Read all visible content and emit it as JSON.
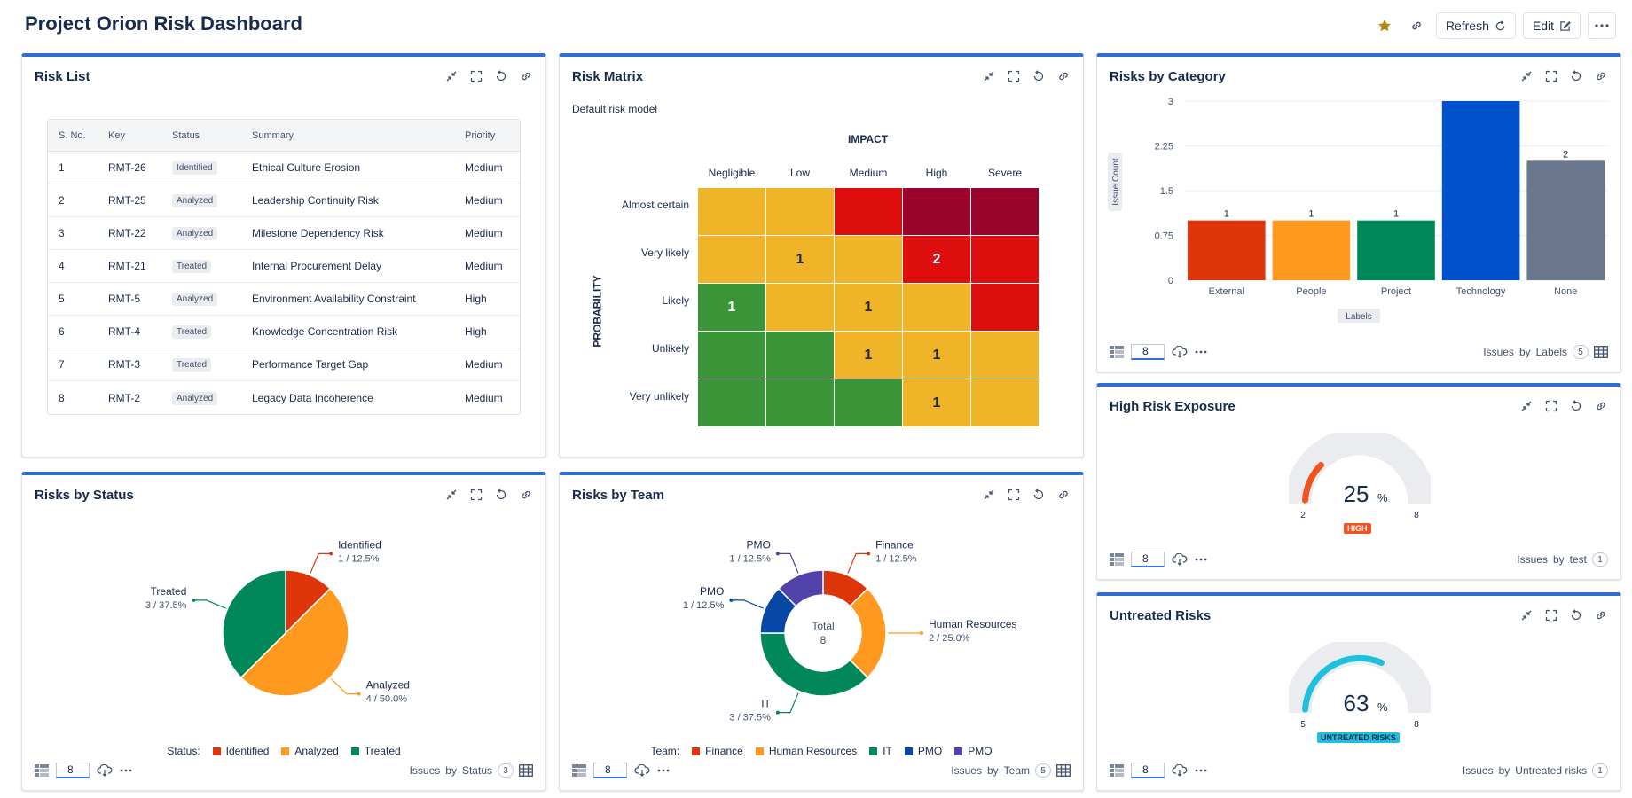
{
  "page": {
    "title": "Project Orion Risk Dashboard",
    "refresh_label": "Refresh",
    "edit_label": "Edit"
  },
  "colors": {
    "accent": "#2f6fd6",
    "identified": "#de350b",
    "analyzed": "#ff991f",
    "treated": "#00875a",
    "technology": "#0052cc",
    "none": "#6b778c",
    "it": "#00875a",
    "pmo1": "#0747a6",
    "pmo2": "#5243aa",
    "gauge_high": "#f4511e",
    "gauge_untreated": "#1fc0dd"
  },
  "risk_list": {
    "title": "Risk List",
    "columns": [
      "S. No.",
      "Key",
      "Status",
      "Summary",
      "Priority"
    ],
    "rows": [
      {
        "no": "1",
        "key": "RMT-26",
        "status": "Identified",
        "summary": "Ethical Culture Erosion",
        "priority": "Medium"
      },
      {
        "no": "2",
        "key": "RMT-25",
        "status": "Analyzed",
        "summary": "Leadership Continuity Risk",
        "priority": "Medium"
      },
      {
        "no": "3",
        "key": "RMT-22",
        "status": "Analyzed",
        "summary": "Milestone Dependency Risk",
        "priority": "Medium"
      },
      {
        "no": "4",
        "key": "RMT-21",
        "status": "Treated",
        "summary": "Internal Procurement Delay",
        "priority": "Medium"
      },
      {
        "no": "5",
        "key": "RMT-5",
        "status": "Analyzed",
        "summary": "Environment Availability Constraint",
        "priority": "High"
      },
      {
        "no": "6",
        "key": "RMT-4",
        "status": "Treated",
        "summary": "Knowledge Concentration Risk",
        "priority": "High"
      },
      {
        "no": "7",
        "key": "RMT-3",
        "status": "Treated",
        "summary": "Performance Target Gap",
        "priority": "Medium"
      },
      {
        "no": "8",
        "key": "RMT-2",
        "status": "Analyzed",
        "summary": "Legacy Data Incoherence",
        "priority": "Medium"
      }
    ]
  },
  "risk_matrix": {
    "title": "Risk Matrix",
    "subtitle": "Default risk model",
    "impact_label": "IMPACT",
    "probability_label": "PROBABILITY",
    "impact_levels": [
      "Negligible",
      "Low",
      "Medium",
      "High",
      "Severe"
    ],
    "probability_levels": [
      "Almost certain",
      "Very likely",
      "Likely",
      "Unlikely",
      "Very unlikely"
    ],
    "colors": [
      [
        "y",
        "y",
        "r",
        "dr",
        "dr"
      ],
      [
        "y",
        "y",
        "y",
        "r",
        "r"
      ],
      [
        "g",
        "y",
        "y",
        "y",
        "r"
      ],
      [
        "g",
        "g",
        "y",
        "y",
        "y"
      ],
      [
        "g",
        "g",
        "g",
        "y",
        "y"
      ]
    ],
    "counts": [
      [
        "",
        "",
        "",
        "",
        ""
      ],
      [
        "",
        "1",
        "",
        "2",
        ""
      ],
      [
        "1",
        "",
        "1",
        "",
        ""
      ],
      [
        "",
        "",
        "1",
        "1",
        ""
      ],
      [
        "",
        "",
        "",
        "1",
        ""
      ]
    ]
  },
  "risks_by_category": {
    "title": "Risks by Category",
    "footer_value": "8",
    "footer_issues": "Issues",
    "footer_by": "by",
    "footer_field": "Labels",
    "footer_count": "5"
  },
  "high_risk_exposure": {
    "title": "High Risk Exposure",
    "percent": "25",
    "percent_sign": "%",
    "min": "2",
    "max": "8",
    "badge": "HIGH",
    "fraction": 0.25,
    "footer_value": "8",
    "footer_issues": "Issues",
    "footer_by": "by",
    "footer_field": "test",
    "footer_count": "1"
  },
  "untreated_risks": {
    "title": "Untreated Risks",
    "percent": "63",
    "percent_sign": "%",
    "min": "5",
    "max": "8",
    "badge": "UNTREATED RISKS",
    "fraction": 0.63,
    "footer_value": "8",
    "footer_issues": "Issues",
    "footer_by": "by",
    "footer_field": "Untreated risks",
    "footer_count": "1"
  },
  "risks_by_status": {
    "title": "Risks by Status",
    "legend_title": "Status:",
    "footer_value": "8",
    "footer_issues": "Issues",
    "footer_by": "by",
    "footer_field": "Status",
    "footer_count": "3"
  },
  "risks_by_team": {
    "title": "Risks by Team",
    "legend_title": "Team:",
    "center_label": "Total",
    "center_value": "8",
    "footer_value": "8",
    "footer_issues": "Issues",
    "footer_by": "by",
    "footer_field": "Team",
    "footer_count": "5"
  },
  "chart_data": [
    {
      "type": "bar",
      "title": "Risks by Category",
      "categories": [
        "External",
        "People",
        "Project",
        "Technology",
        "None"
      ],
      "values": [
        1,
        1,
        1,
        3,
        2
      ],
      "data_labels": [
        "1",
        "1",
        "1",
        "",
        "2"
      ],
      "colors": [
        "#de350b",
        "#ff991f",
        "#00875a",
        "#0052cc",
        "#6b778c"
      ],
      "ylabel": "Issue Count",
      "xlabel": "Labels",
      "ylim": [
        0,
        3
      ],
      "yticks": [
        "0",
        "0.75",
        "1.5",
        "2.25",
        "3"
      ],
      "grid": true
    },
    {
      "type": "pie",
      "title": "Risks by Status",
      "categories": [
        "Identified",
        "Analyzed",
        "Treated"
      ],
      "values": [
        1,
        4,
        3
      ],
      "labels": [
        "1 / 12.5%",
        "4 / 50.0%",
        "3 / 37.5%"
      ],
      "colors": [
        "#de350b",
        "#ff991f",
        "#00875a"
      ],
      "legend": "bottom"
    },
    {
      "type": "pie",
      "title": "Risks by Team",
      "donut": true,
      "categories": [
        "Finance",
        "Human Resources",
        "IT",
        "PMO",
        "PMO"
      ],
      "values": [
        1,
        2,
        3,
        1,
        1
      ],
      "labels": [
        "1 / 12.5%",
        "2 / 25.0%",
        "3 / 37.5%",
        "1 / 12.5%",
        "1 / 12.5%"
      ],
      "colors": [
        "#de350b",
        "#ff991f",
        "#00875a",
        "#0747a6",
        "#5243aa"
      ],
      "legend": "bottom"
    }
  ]
}
